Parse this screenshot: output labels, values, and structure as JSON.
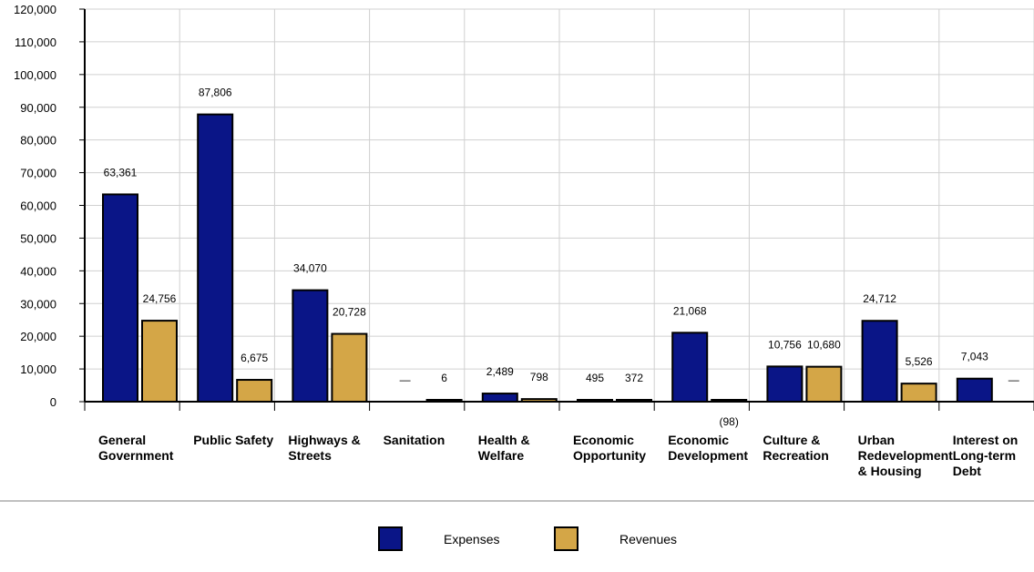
{
  "chart_data": {
    "type": "bar",
    "categories": [
      [
        "General",
        "Government"
      ],
      [
        "Public Safety"
      ],
      [
        "Highways &",
        "Streets"
      ],
      [
        "Sanitation"
      ],
      [
        "Health &",
        "Welfare"
      ],
      [
        "Economic",
        "Opportunity"
      ],
      [
        "Economic",
        "Development"
      ],
      [
        "Culture &",
        "Recreation"
      ],
      [
        "Urban",
        "Redevelopment",
        "& Housing"
      ],
      [
        "Interest on",
        "Long-term",
        "Debt"
      ]
    ],
    "series": [
      {
        "name": "Expenses",
        "color": "#0A1587",
        "values": [
          63361,
          87806,
          34070,
          0,
          2489,
          495,
          21068,
          10756,
          24712,
          7043
        ],
        "labels": [
          "63,361",
          "87,806",
          "34,070",
          "—",
          "2,489",
          "495",
          "21,068",
          "10,756",
          "24,712",
          "7,043"
        ]
      },
      {
        "name": "Revenues",
        "color": "#D4A647",
        "values": [
          24756,
          6675,
          20728,
          6,
          798,
          372,
          -98,
          10680,
          5526,
          0
        ],
        "labels": [
          "24,756",
          "6,675",
          "20,728",
          "6",
          "798",
          "372",
          "(98)",
          "10,680",
          "5,526",
          "—"
        ]
      }
    ],
    "ylim": [
      0,
      120000
    ],
    "yticks": [
      0,
      10000,
      20000,
      30000,
      40000,
      50000,
      60000,
      70000,
      80000,
      90000,
      100000,
      110000,
      120000
    ],
    "ytick_labels": [
      "0",
      "10,000",
      "20,000",
      "30,000",
      "40,000",
      "50,000",
      "60,000",
      "70,000",
      "80,000",
      "90,000",
      "100,000",
      "110,000",
      "120,000"
    ],
    "grid": true,
    "legend_position": "bottom-center",
    "title": "",
    "xlabel": "",
    "ylabel": ""
  }
}
